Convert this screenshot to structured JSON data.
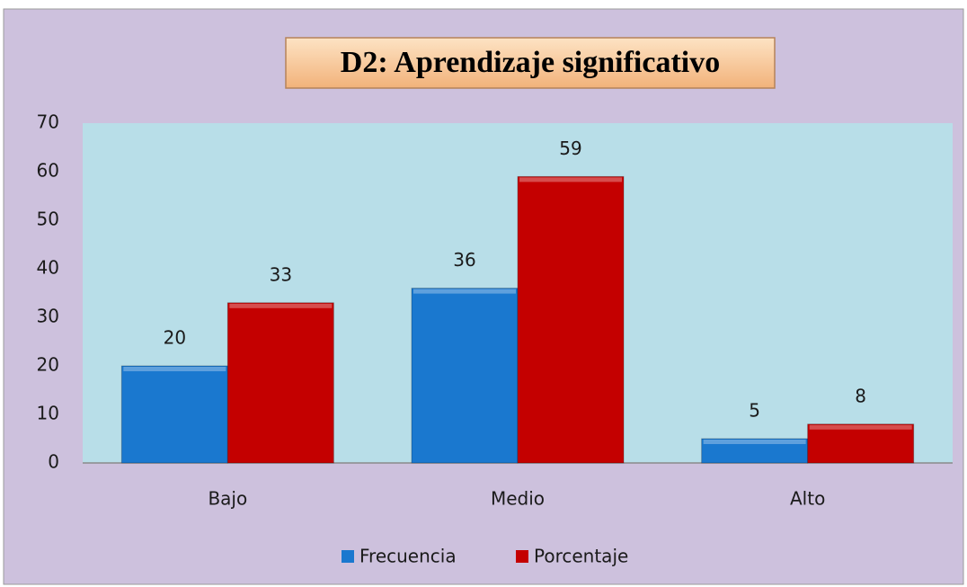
{
  "chart_data": {
    "type": "bar",
    "title": "D2: Aprendizaje significativo",
    "categories": [
      "Bajo",
      "Medio",
      "Alto"
    ],
    "series": [
      {
        "name": "Frecuencia",
        "color": "#1a78cf",
        "values": [
          20,
          36,
          5
        ]
      },
      {
        "name": "Porcentaje",
        "color": "#c40000",
        "values": [
          33,
          59,
          8
        ]
      }
    ],
    "ylim": [
      0,
      70
    ],
    "yticks": [
      0,
      10,
      20,
      30,
      40,
      50,
      60,
      70
    ],
    "grid": false,
    "legend": "bottom"
  }
}
